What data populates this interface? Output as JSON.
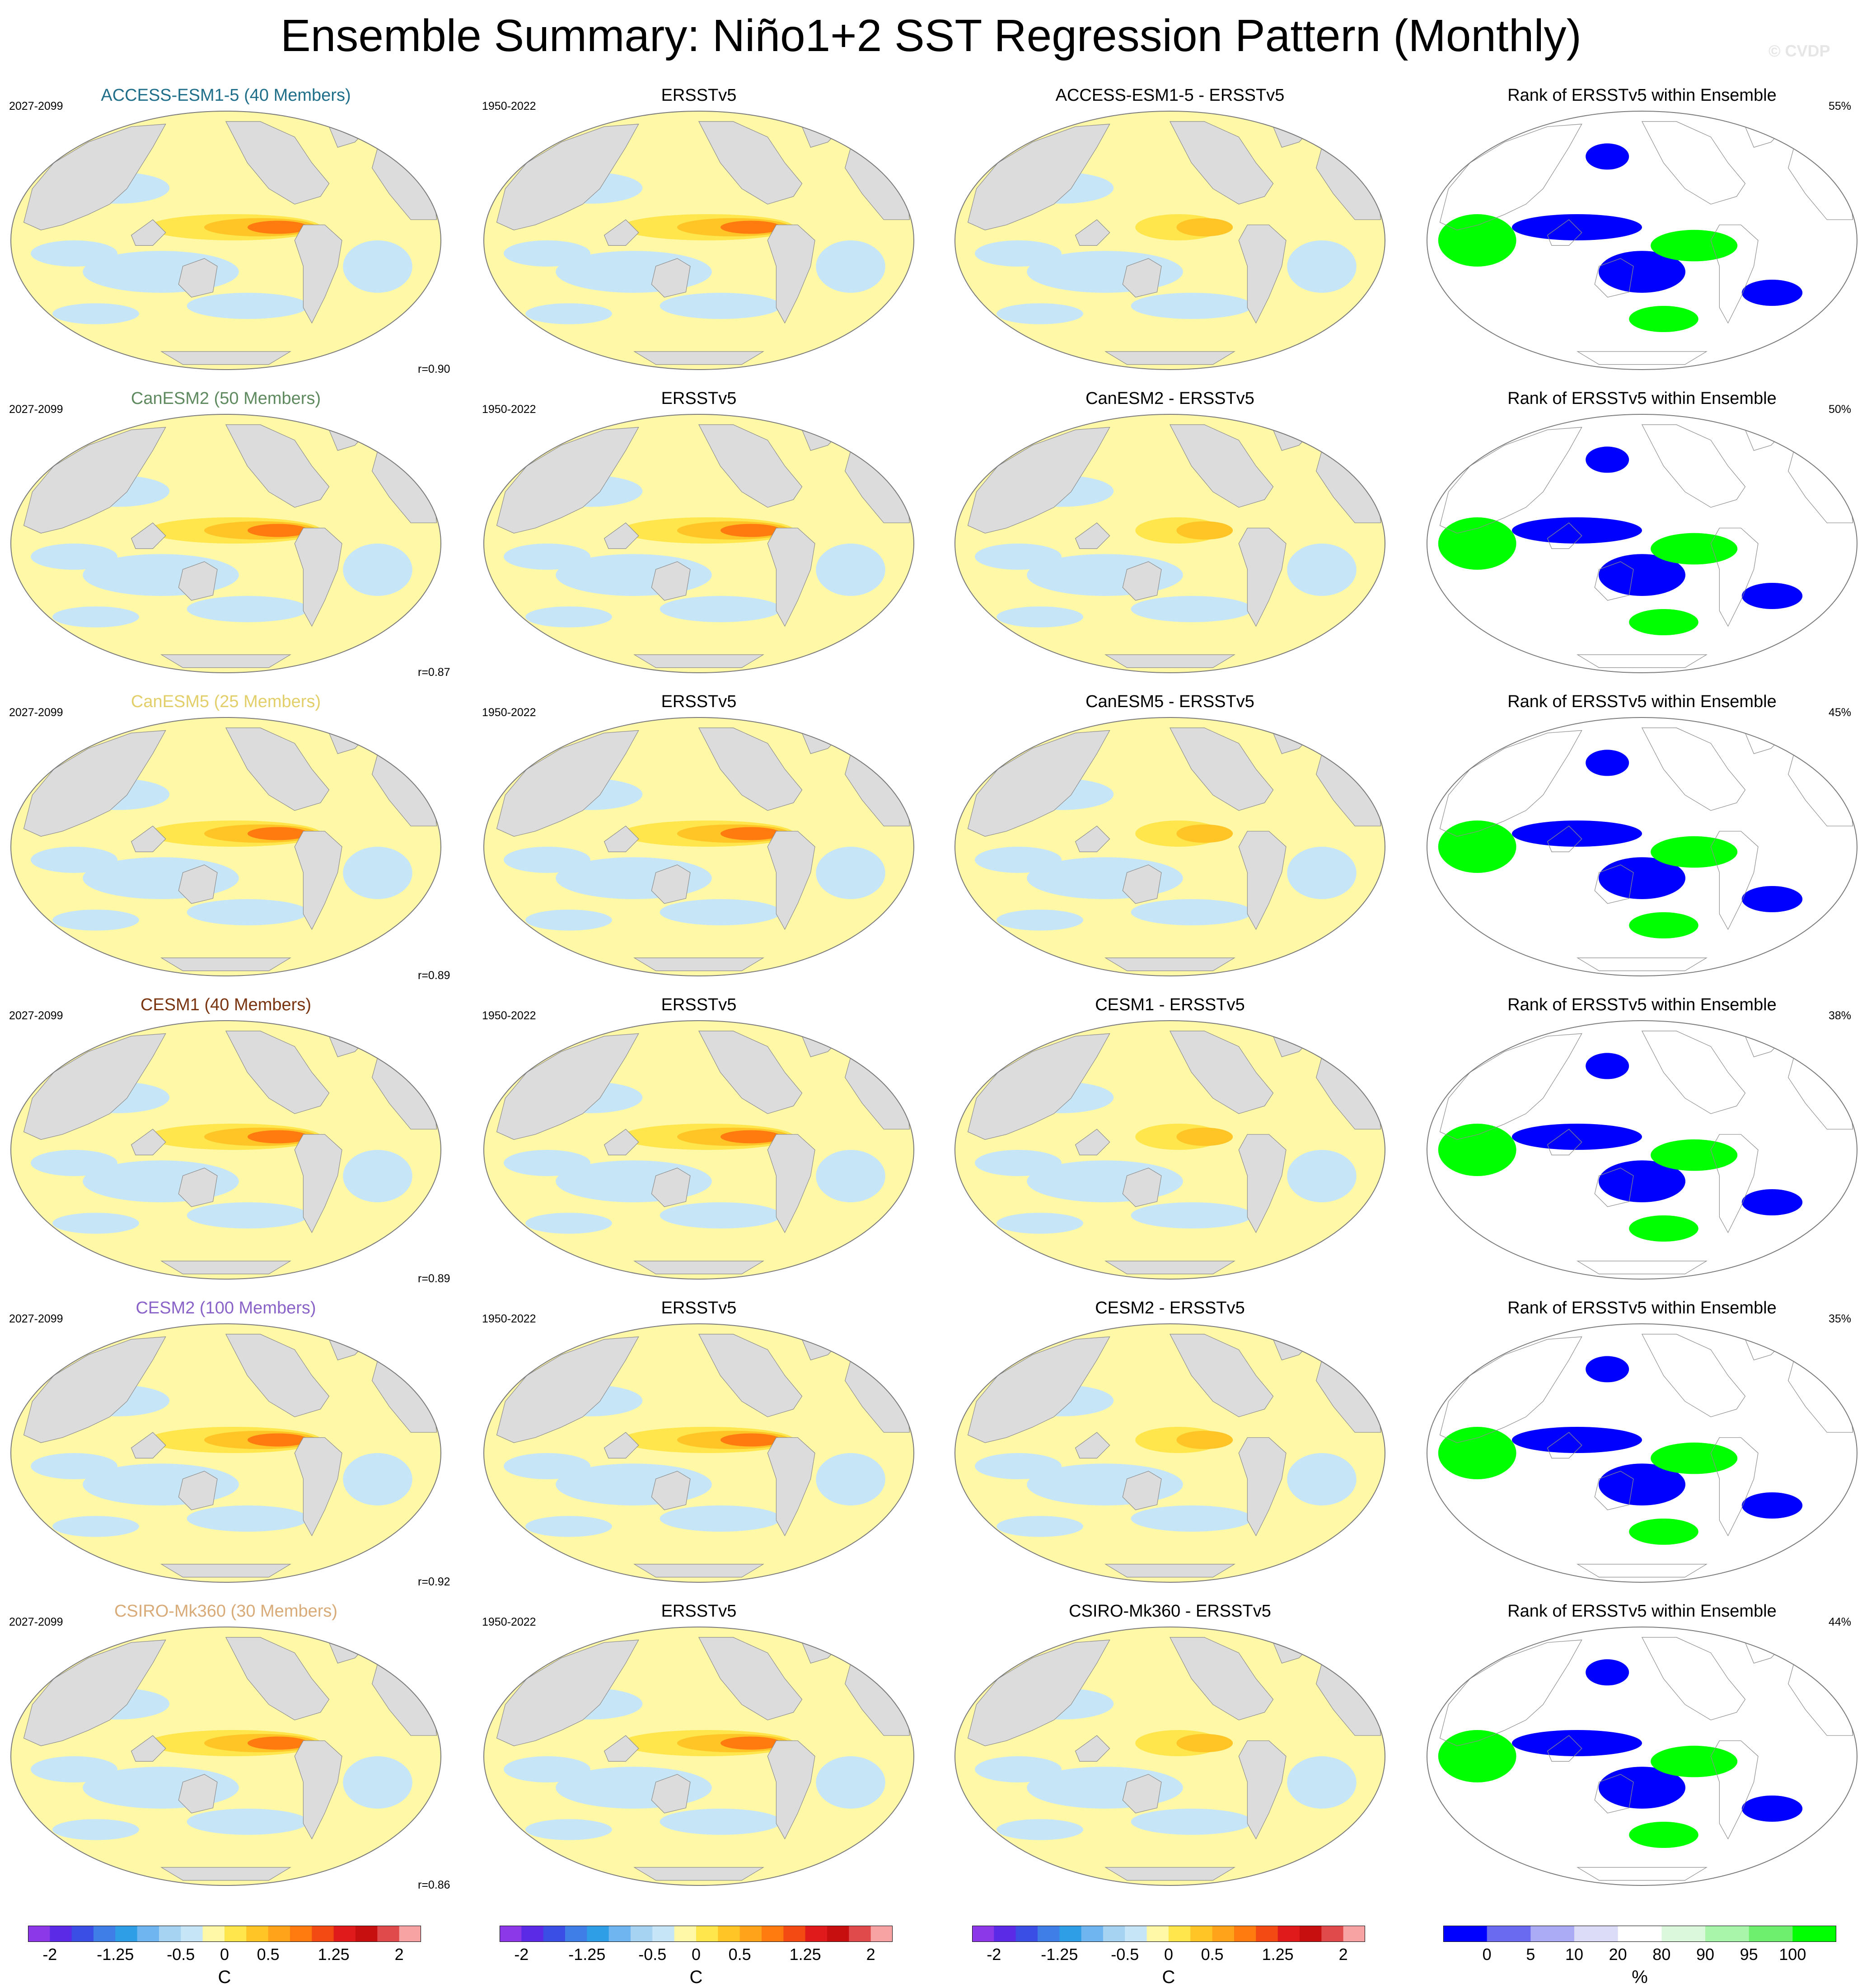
{
  "title": "Ensemble Summary: Niño1+2 SST Regression Pattern (Monthly)",
  "credit": "© CVDP",
  "palette": {
    "sst": [
      "#8c38e8",
      "#5a2ae6",
      "#3a4ee6",
      "#3f7ee6",
      "#2e9fe6",
      "#6fb5ef",
      "#a7d3f2",
      "#c6e6f7",
      "#fff8a6",
      "#ffe64d",
      "#ffc426",
      "#ffa31a",
      "#ff7a0f",
      "#f24a12",
      "#e01a1a",
      "#c80f0f",
      "#e04a4a",
      "#f7a3a3"
    ],
    "rank": [
      "#0000ff",
      "#6a6af0",
      "#aaaaf5",
      "#dcdcf8",
      "#ffffff",
      "#dcf8dc",
      "#a9f5a9",
      "#6ef06e",
      "#00ff00"
    ],
    "land": "#dcdcdc",
    "coast": "#8c8c8c"
  },
  "chart_data": {
    "type": "heatmap",
    "panels_per_row": 4,
    "column_titles": [
      "ERSSTv5",
      "Rank of ERSSTv5 within Ensemble"
    ],
    "model_period": "2027-2099",
    "obs_period": "1950-2022",
    "rows": [
      {
        "model": "ACCESS-ESM1-5 (40 Members)",
        "title_color": "#1f6f8b",
        "diff_title": "ACCESS-ESM1-5 - ERSSTv5",
        "corr": "r=0.90",
        "rank_pct": "55%"
      },
      {
        "model": "CanESM2 (50 Members)",
        "title_color": "#5f8a5f",
        "diff_title": "CanESM2 - ERSSTv5",
        "corr": "r=0.87",
        "rank_pct": "50%"
      },
      {
        "model": "CanESM5 (25 Members)",
        "title_color": "#e3cf6a",
        "diff_title": "CanESM5 - ERSSTv5",
        "corr": "r=0.89",
        "rank_pct": "45%"
      },
      {
        "model": "CESM1 (40 Members)",
        "title_color": "#7a3410",
        "diff_title": "CESM1 - ERSSTv5",
        "corr": "r=0.89",
        "rank_pct": "38%"
      },
      {
        "model": "CESM2 (100 Members)",
        "title_color": "#8a63c9",
        "diff_title": "CESM2 - ERSSTv5",
        "corr": "r=0.92",
        "rank_pct": "35%"
      },
      {
        "model": "CSIRO-Mk360 (30 Members)",
        "title_color": "#d8ab78",
        "diff_title": "CSIRO-Mk360 - ERSSTv5",
        "corr": "r=0.86",
        "rank_pct": "44%"
      }
    ],
    "colorbar_sst": {
      "unit": "C",
      "levels": [
        -2.25,
        -2,
        -1.75,
        -1.5,
        -1.25,
        -1,
        -0.75,
        -0.5,
        -0.25,
        0,
        0.25,
        0.5,
        0.75,
        1,
        1.25,
        1.5,
        1.75,
        2,
        2.25
      ],
      "tick_labels": [
        "-2",
        "-1.25",
        "-0.5",
        "0",
        "0.5",
        "1.25",
        "2"
      ],
      "tick_values": [
        -2,
        -1.25,
        -0.5,
        0,
        0.5,
        1.25,
        2
      ]
    },
    "colorbar_rank": {
      "unit": "%",
      "tick_labels": [
        "0",
        "5",
        "10",
        "20",
        "80",
        "90",
        "95",
        "100"
      ]
    }
  }
}
